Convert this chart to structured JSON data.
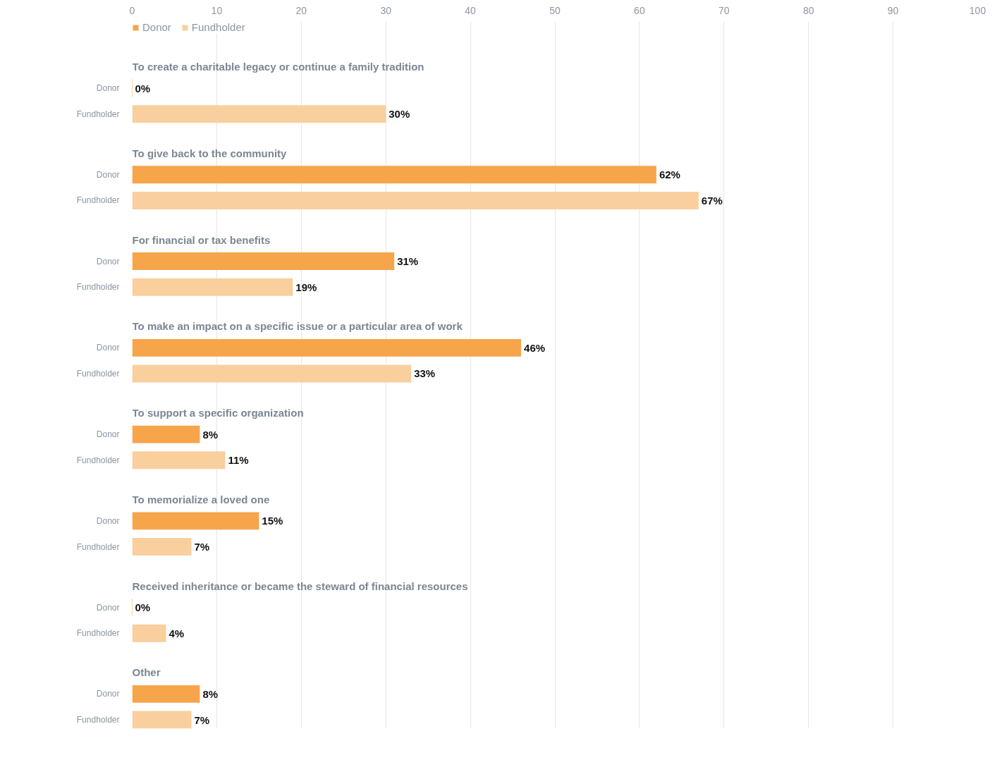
{
  "chart_data": {
    "type": "bar",
    "orientation": "horizontal",
    "categories": [
      "To create a charitable legacy or continue a family tradition",
      "To give back to the community",
      "For financial or tax benefits",
      "To make an impact on a specific issue or a particular area of work",
      "To support a specific organization",
      "To memorialize a loved one",
      "Received inheritance or became the steward of financial resources",
      "Other"
    ],
    "series": [
      {
        "name": "Donor",
        "color": "#f6a54a",
        "values": [
          0,
          62,
          31,
          46,
          8,
          15,
          0,
          8
        ],
        "value_labels": [
          "0%",
          "62%",
          "31%",
          "46%",
          "8%",
          "15%",
          "0%",
          "8%"
        ]
      },
      {
        "name": "Fundholder",
        "color": "#f9cf9e",
        "values": [
          30,
          67,
          19,
          33,
          11,
          7,
          4,
          7
        ],
        "value_labels": [
          "30%",
          "67%",
          "19%",
          "33%",
          "11%",
          "7%",
          "4%",
          "7%"
        ]
      }
    ],
    "xlim": [
      0,
      100
    ],
    "xticks": [
      0,
      10,
      20,
      30,
      40,
      50,
      60,
      70,
      80,
      90,
      100
    ],
    "grid": "x",
    "legend": "top left"
  }
}
